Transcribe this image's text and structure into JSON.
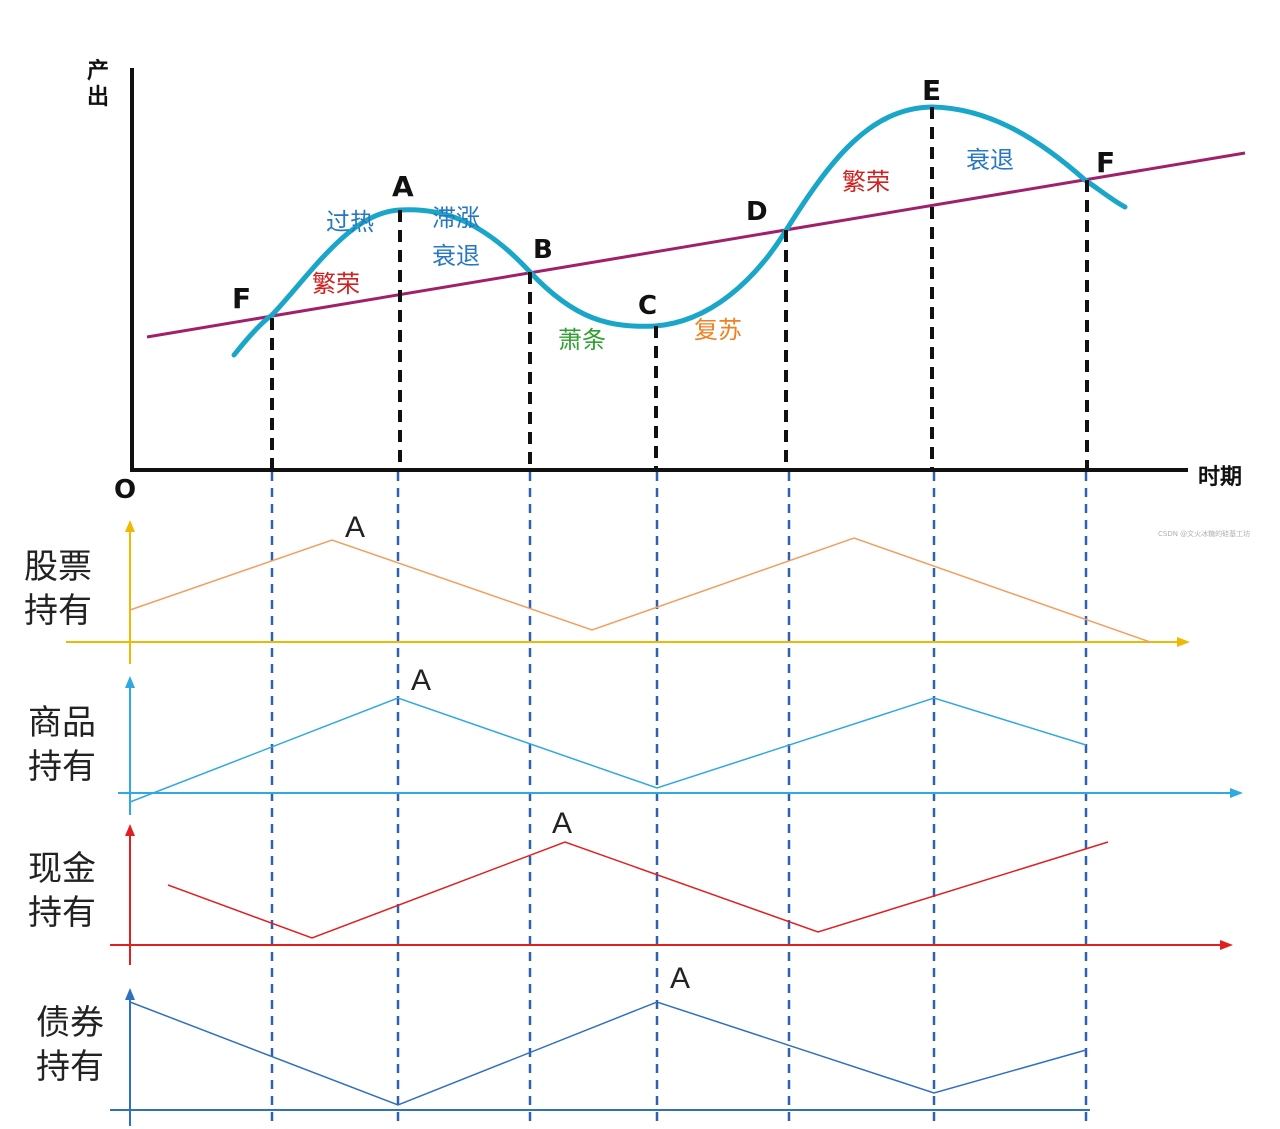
{
  "colors": {
    "cycle_curve": "#1aa6c8",
    "trend_line": "#a0206a",
    "stocks": "#f0a060",
    "stocks_axis": "#f0b800",
    "commodities": "#30a8e0",
    "cash": "#e02020",
    "bonds": "#3070c0",
    "guide_lines": "#3060b0",
    "phase_prosperity": "#d02020",
    "phase_overheat": "#2878c0",
    "phase_depression": "#30a030",
    "phase_recovery": "#f08020"
  },
  "top_chart": {
    "y_axis_label": "产出",
    "x_axis_label": "时期",
    "origin_label": "O",
    "points": {
      "F1": "F",
      "A": "A",
      "B": "B",
      "C": "C",
      "D": "D",
      "E": "E",
      "F2": "F"
    },
    "phases": {
      "prosperity_1": "繁荣",
      "overheat": "过热",
      "stagflation": "滞涨",
      "recession_1": "衰退",
      "depression": "萧条",
      "recovery": "复苏",
      "prosperity_2": "繁荣",
      "recession_2": "衰退"
    }
  },
  "rows": [
    {
      "label_line1": "股票",
      "label_line2": "持有",
      "peak_label": "A"
    },
    {
      "label_line1": "商品",
      "label_line2": "持有",
      "peak_label": "A"
    },
    {
      "label_line1": "现金",
      "label_line2": "持有",
      "peak_label": "A"
    },
    {
      "label_line1": "债券",
      "label_line2": "持有",
      "peak_label": "A"
    }
  ],
  "watermark": "CSDN @文火冰糖的硅基工坊"
}
